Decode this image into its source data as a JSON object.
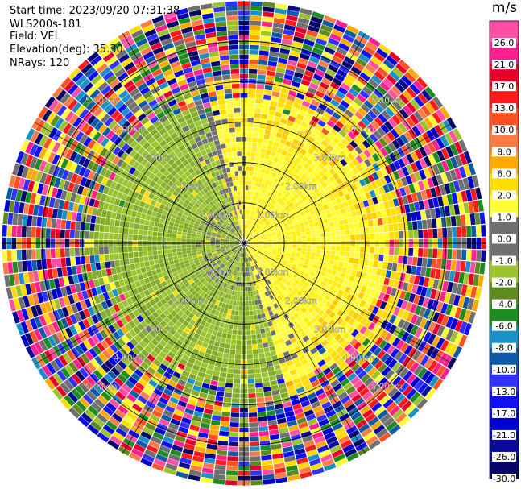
{
  "header": {
    "start_time": "Start time: 2023/09/20 07:31:38",
    "instrument": "WLS200s-181",
    "field": "Field: VEL",
    "elevation": "Elevation(deg): 35.30",
    "nrays": "NRays: 120"
  },
  "chart_data": {
    "type": "heatmap",
    "title": "",
    "projection": "polar (PPI)",
    "field": "VEL",
    "n_rays": 120,
    "range_max_km": 6.0,
    "range_rings_km": [
      1.0,
      2.0,
      3.0,
      4.0,
      5.0
    ],
    "range_ring_labels": [
      "1.00km",
      "2.00km",
      "3.00km",
      "4.00km",
      "5.00km"
    ],
    "colorbar": {
      "unit": "m/s",
      "boundaries": [
        -30.0,
        -26.0,
        -21.0,
        -17.0,
        -13.0,
        -10.0,
        -8.0,
        -6.0,
        -4.0,
        -2.0,
        -1.0,
        0.0,
        1.0,
        2.0,
        6.0,
        8.0,
        10.0,
        13.0,
        17.0,
        21.0,
        26.0
      ],
      "tick_labels": [
        "-30.0",
        "-26.0",
        "-21.0",
        "-17.0",
        "-13.0",
        "-10.0",
        "-8.0",
        "-6.0",
        "-4.0",
        "-2.0",
        "-1.0",
        "0.0",
        "1.0",
        "2.0",
        "6.0",
        "8.0",
        "10.0",
        "13.0",
        "17.0",
        "21.0",
        "26.0"
      ],
      "colors": [
        "#06066a",
        "#0a0a96",
        "#0000d0",
        "#1010f0",
        "#3030ff",
        "#0e5aa6",
        "#1a8fc8",
        "#1e8c1e",
        "#5e8a1e",
        "#9bc330",
        "#707070",
        "#707070",
        "#ffff33",
        "#ffdd00",
        "#ffaa00",
        "#ff7b45",
        "#ff5220",
        "#ff1a1a",
        "#e8002a",
        "#ff1f8f"
      ],
      "top_color": "#ff4fa5"
    },
    "pattern": {
      "negative_sector_center_deg": 250,
      "positive_sector_center_deg": 75,
      "coherent_range_km": 3.5,
      "noisy_beyond_km": 4.0
    }
  }
}
